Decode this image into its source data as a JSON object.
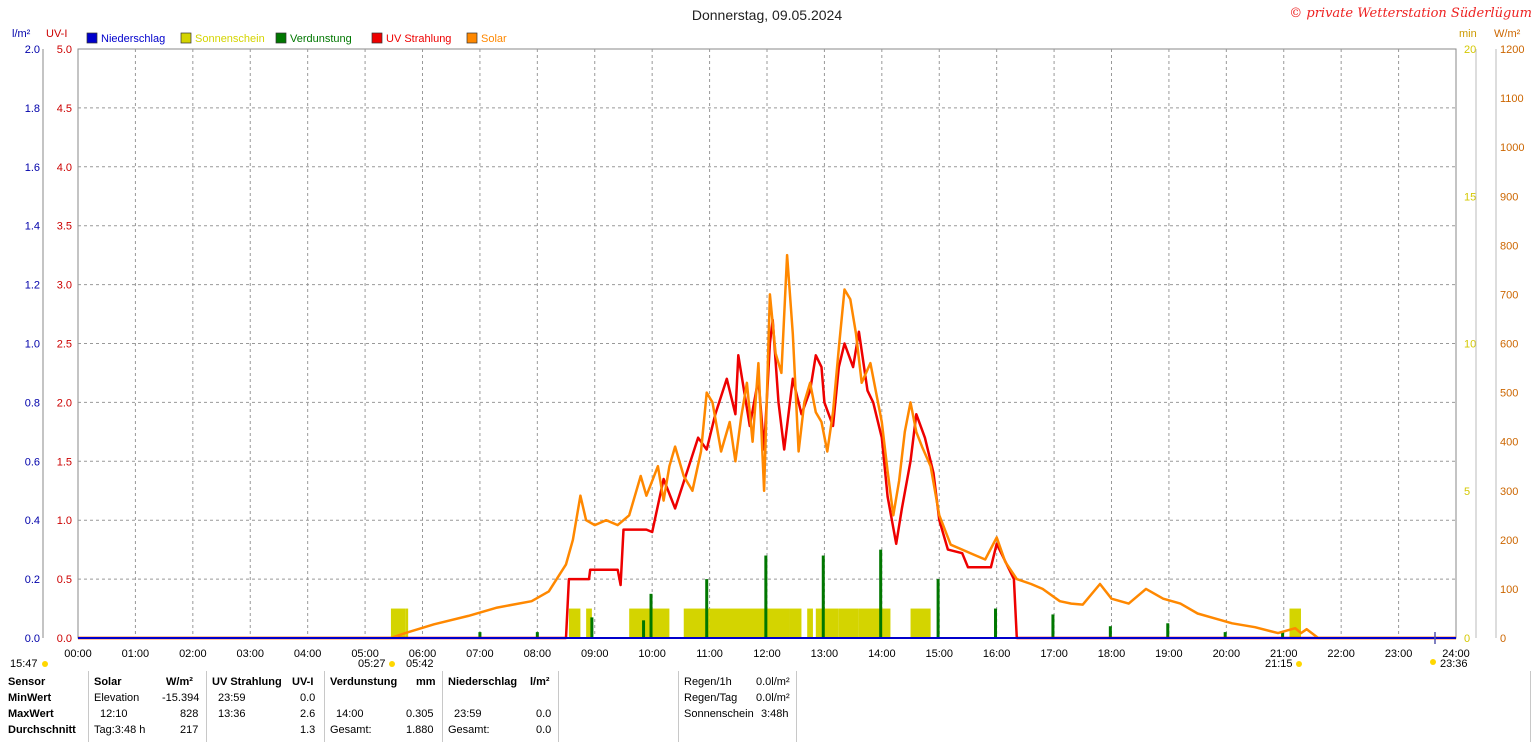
{
  "page": {
    "title": "Donnerstag, 09.05.2024",
    "credit": "© private Wetterstation Süderlügum"
  },
  "chart_data": {
    "type": "line",
    "title": "Donnerstag, 09.05.2024",
    "xlabel": "",
    "x_ticks": [
      "00:00",
      "01:00",
      "02:00",
      "03:00",
      "04:00",
      "05:00",
      "06:00",
      "07:00",
      "08:00",
      "09:00",
      "10:00",
      "11:00",
      "12:00",
      "13:00",
      "14:00",
      "15:00",
      "16:00",
      "17:00",
      "18:00",
      "19:00",
      "20:00",
      "21:00",
      "22:00",
      "23:00",
      "24:00"
    ],
    "xlim": [
      0,
      24
    ],
    "grid": true,
    "legend_position": "top-left",
    "axes": {
      "left_rain": {
        "label": "l/m²",
        "range": [
          0,
          2.0
        ],
        "ticks": [
          "0.0",
          "0.2",
          "0.4",
          "0.6",
          "0.8",
          "1.0",
          "1.2",
          "1.4",
          "1.6",
          "1.8",
          "2.0"
        ],
        "color": "#0000aa"
      },
      "left_uv": {
        "label": "UV-I",
        "range": [
          0,
          5.0
        ],
        "ticks": [
          "0.0",
          "0.5",
          "1.0",
          "1.5",
          "2.0",
          "2.5",
          "3.0",
          "3.5",
          "4.0",
          "4.5",
          "5.0"
        ],
        "color": "#cc0000"
      },
      "right_sun": {
        "label": "min",
        "range": [
          0,
          20
        ],
        "ticks": [
          "0",
          "5",
          "10",
          "15",
          "20"
        ],
        "color": "#d4c800"
      },
      "right_solar": {
        "label": "W/m²",
        "range": [
          0,
          1200
        ],
        "ticks": [
          "0",
          "100",
          "200",
          "300",
          "400",
          "500",
          "600",
          "700",
          "800",
          "900",
          "1000",
          "1100",
          "1200"
        ],
        "color": "#cc6600"
      }
    },
    "series": [
      {
        "name": "Niederschlag",
        "color": "#0000cc",
        "axis": "left_rain",
        "style": "line",
        "points": [
          [
            0,
            0
          ],
          [
            24,
            0
          ]
        ]
      },
      {
        "name": "Sonnenschein",
        "color": "#d4d400",
        "axis": "right_sun",
        "style": "bar",
        "values": [
          [
            5.45,
            5.7,
            1
          ],
          [
            5.7,
            5.75,
            1
          ],
          [
            8.55,
            8.75,
            1
          ],
          [
            8.85,
            8.95,
            1
          ],
          [
            9.6,
            10.3,
            1
          ],
          [
            10.55,
            11.0,
            1
          ],
          [
            11.0,
            12.4,
            1
          ],
          [
            12.4,
            12.6,
            1
          ],
          [
            12.7,
            12.8,
            1
          ],
          [
            12.85,
            13.25,
            1
          ],
          [
            13.25,
            13.6,
            1
          ],
          [
            13.6,
            14.15,
            1
          ],
          [
            14.5,
            14.85,
            1
          ],
          [
            21.1,
            21.3,
            1
          ]
        ]
      },
      {
        "name": "Verdunstung",
        "color": "#007700",
        "axis": "left_rain",
        "style": "bar",
        "values": [
          [
            7.0,
            0.02
          ],
          [
            8.0,
            0.02
          ],
          [
            8.95,
            0.07
          ],
          [
            9.85,
            0.06
          ],
          [
            9.98,
            0.15
          ],
          [
            10.95,
            0.2
          ],
          [
            11.98,
            0.28
          ],
          [
            12.98,
            0.28
          ],
          [
            13.98,
            0.3
          ],
          [
            14.98,
            0.2
          ],
          [
            15.98,
            0.1
          ],
          [
            16.98,
            0.08
          ],
          [
            17.98,
            0.04
          ],
          [
            18.98,
            0.05
          ],
          [
            19.98,
            0.02
          ],
          [
            20.98,
            0.02
          ]
        ]
      },
      {
        "name": "UV Strahlung",
        "color": "#ee0000",
        "axis": "left_uv",
        "style": "line",
        "points": [
          [
            0,
            0
          ],
          [
            8.5,
            0
          ],
          [
            8.55,
            0.5
          ],
          [
            8.9,
            0.5
          ],
          [
            8.92,
            0.58
          ],
          [
            9.4,
            0.58
          ],
          [
            9.45,
            0.45
          ],
          [
            9.5,
            0.92
          ],
          [
            9.9,
            0.92
          ],
          [
            10.0,
            0.9
          ],
          [
            10.2,
            1.35
          ],
          [
            10.4,
            1.1
          ],
          [
            10.6,
            1.4
          ],
          [
            10.8,
            1.7
          ],
          [
            10.95,
            1.6
          ],
          [
            11.1,
            1.9
          ],
          [
            11.3,
            2.2
          ],
          [
            11.45,
            1.9
          ],
          [
            11.5,
            2.4
          ],
          [
            11.7,
            1.8
          ],
          [
            11.85,
            2.2
          ],
          [
            11.95,
            1.6
          ],
          [
            12.05,
            2.5
          ],
          [
            12.1,
            2.7
          ],
          [
            12.2,
            2.0
          ],
          [
            12.3,
            1.6
          ],
          [
            12.45,
            2.2
          ],
          [
            12.6,
            1.9
          ],
          [
            12.75,
            2.1
          ],
          [
            12.85,
            2.4
          ],
          [
            12.95,
            2.3
          ],
          [
            13.0,
            2.0
          ],
          [
            13.15,
            1.8
          ],
          [
            13.25,
            2.3
          ],
          [
            13.35,
            2.5
          ],
          [
            13.5,
            2.3
          ],
          [
            13.6,
            2.6
          ],
          [
            13.75,
            2.1
          ],
          [
            13.85,
            2.0
          ],
          [
            14.0,
            1.7
          ],
          [
            14.1,
            1.2
          ],
          [
            14.25,
            0.8
          ],
          [
            14.35,
            1.1
          ],
          [
            14.5,
            1.5
          ],
          [
            14.6,
            1.9
          ],
          [
            14.75,
            1.7
          ],
          [
            14.9,
            1.4
          ],
          [
            15.0,
            1.0
          ],
          [
            15.15,
            0.75
          ],
          [
            15.4,
            0.72
          ],
          [
            15.5,
            0.6
          ],
          [
            15.9,
            0.6
          ],
          [
            16.0,
            0.8
          ],
          [
            16.1,
            0.7
          ],
          [
            16.3,
            0.5
          ],
          [
            16.35,
            0.0
          ],
          [
            24,
            0
          ]
        ]
      },
      {
        "name": "Solar",
        "color": "#ff8800",
        "axis": "right_solar",
        "style": "line",
        "points": [
          [
            0,
            0
          ],
          [
            5.45,
            0
          ],
          [
            5.7,
            10
          ],
          [
            6.2,
            28
          ],
          [
            6.8,
            45
          ],
          [
            7.3,
            62
          ],
          [
            7.9,
            75
          ],
          [
            8.2,
            95
          ],
          [
            8.5,
            150
          ],
          [
            8.62,
            200
          ],
          [
            8.75,
            290
          ],
          [
            8.85,
            240
          ],
          [
            9.0,
            230
          ],
          [
            9.2,
            240
          ],
          [
            9.4,
            230
          ],
          [
            9.6,
            250
          ],
          [
            9.8,
            330
          ],
          [
            9.9,
            290
          ],
          [
            10.0,
            320
          ],
          [
            10.1,
            350
          ],
          [
            10.2,
            280
          ],
          [
            10.3,
            350
          ],
          [
            10.4,
            390
          ],
          [
            10.55,
            330
          ],
          [
            10.7,
            300
          ],
          [
            10.85,
            380
          ],
          [
            10.95,
            500
          ],
          [
            11.05,
            480
          ],
          [
            11.2,
            380
          ],
          [
            11.35,
            440
          ],
          [
            11.45,
            360
          ],
          [
            11.55,
            450
          ],
          [
            11.65,
            520
          ],
          [
            11.75,
            400
          ],
          [
            11.85,
            560
          ],
          [
            11.95,
            300
          ],
          [
            12.05,
            700
          ],
          [
            12.15,
            580
          ],
          [
            12.25,
            540
          ],
          [
            12.35,
            780
          ],
          [
            12.45,
            620
          ],
          [
            12.55,
            380
          ],
          [
            12.65,
            480
          ],
          [
            12.75,
            520
          ],
          [
            12.85,
            460
          ],
          [
            12.95,
            440
          ],
          [
            13.05,
            380
          ],
          [
            13.15,
            460
          ],
          [
            13.25,
            590
          ],
          [
            13.35,
            710
          ],
          [
            13.45,
            690
          ],
          [
            13.55,
            620
          ],
          [
            13.65,
            520
          ],
          [
            13.8,
            560
          ],
          [
            13.9,
            500
          ],
          [
            14.0,
            440
          ],
          [
            14.1,
            340
          ],
          [
            14.2,
            250
          ],
          [
            14.3,
            320
          ],
          [
            14.4,
            420
          ],
          [
            14.5,
            480
          ],
          [
            14.6,
            420
          ],
          [
            14.7,
            390
          ],
          [
            14.85,
            350
          ],
          [
            15.0,
            250
          ],
          [
            15.2,
            190
          ],
          [
            15.4,
            180
          ],
          [
            15.6,
            170
          ],
          [
            15.8,
            160
          ],
          [
            16.0,
            205
          ],
          [
            16.15,
            155
          ],
          [
            16.35,
            120
          ],
          [
            16.6,
            110
          ],
          [
            16.8,
            100
          ],
          [
            17.1,
            75
          ],
          [
            17.3,
            70
          ],
          [
            17.5,
            68
          ],
          [
            17.8,
            110
          ],
          [
            18.0,
            80
          ],
          [
            18.3,
            70
          ],
          [
            18.6,
            100
          ],
          [
            18.9,
            80
          ],
          [
            19.2,
            70
          ],
          [
            19.5,
            50
          ],
          [
            19.8,
            40
          ],
          [
            20.1,
            30
          ],
          [
            20.5,
            22
          ],
          [
            20.9,
            10
          ],
          [
            21.2,
            20
          ],
          [
            21.3,
            10
          ],
          [
            21.4,
            18
          ],
          [
            21.6,
            0
          ],
          [
            24,
            0
          ]
        ]
      }
    ],
    "markers": {
      "left_start": "15:47",
      "sunrise_a": "05:27",
      "sunrise_b": "05:42",
      "sunset": "21:15",
      "end": "23:36"
    }
  },
  "stats": {
    "headers": {
      "sensor": "Sensor",
      "solar": "Solar",
      "solar_unit": "W/m²",
      "uv": "UV Strahlung",
      "uv_unit": "UV-I",
      "evap": "Verdunstung",
      "evap_unit": "mm",
      "rain": "Niederschlag",
      "rain_unit": "l/m²"
    },
    "rows": {
      "min": "MinWert",
      "max": "MaxWert",
      "avg": "Durchschnitt"
    },
    "solar": {
      "min_time": "Elevation",
      "min_val": "-15.394",
      "max_time": "12:10",
      "max_val": "828",
      "avg_time": "Tag:3:48 h",
      "avg_val": "217"
    },
    "uv": {
      "min_time": "23:59",
      "min_val": "0.0",
      "max_time": "13:36",
      "max_val": "2.6",
      "avg_time": "",
      "avg_val": "1.3"
    },
    "evap": {
      "min_time": "",
      "min_val": "",
      "max_time": "14:00",
      "max_val": "0.305",
      "total_label": "Gesamt:",
      "total_val": "1.880"
    },
    "rain": {
      "min_time": "",
      "min_val": "",
      "max_time": "23:59",
      "max_val": "0.0",
      "total_label": "Gesamt:",
      "total_val": "0.0"
    },
    "extra": {
      "rain_1h_label": "Regen/1h",
      "rain_1h_val": "0.0l/m²",
      "rain_day_label": "Regen/Tag",
      "rain_day_val": "0.0l/m²",
      "sun_label": "Sonnenschein",
      "sun_val": "3:48h"
    }
  }
}
